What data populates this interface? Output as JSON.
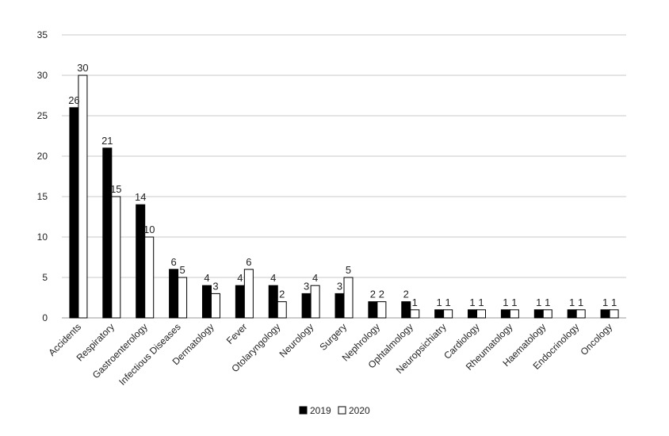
{
  "chart_data": {
    "type": "bar",
    "title": "",
    "xlabel": "",
    "ylabel": "",
    "ylim": [
      0,
      35
    ],
    "yticks": [
      0,
      5,
      10,
      15,
      20,
      25,
      30,
      35
    ],
    "grid": true,
    "legend_position": "bottom",
    "categories": [
      "Accidents",
      "Respiratory",
      "Gastroenterology",
      "Infectious Diseases",
      "Dermatology",
      "Fever",
      "Otolaryngology",
      "Neurology",
      "Surgery",
      "Nephrology",
      "Ophtalmology",
      "Neuropsichiatry",
      "Cardiology",
      "Rheumatology",
      "Haematology",
      "Endocrinology",
      "Oncology"
    ],
    "series": [
      {
        "name": "2019",
        "color": "#000000",
        "values": [
          26,
          21,
          14,
          6,
          4,
          4,
          4,
          3,
          3,
          2,
          2,
          1,
          1,
          1,
          1,
          1,
          1
        ]
      },
      {
        "name": "2020",
        "color": "#ffffff",
        "values": [
          30,
          15,
          10,
          5,
          3,
          6,
          2,
          4,
          5,
          2,
          1,
          1,
          1,
          1,
          1,
          1,
          1
        ]
      }
    ]
  }
}
